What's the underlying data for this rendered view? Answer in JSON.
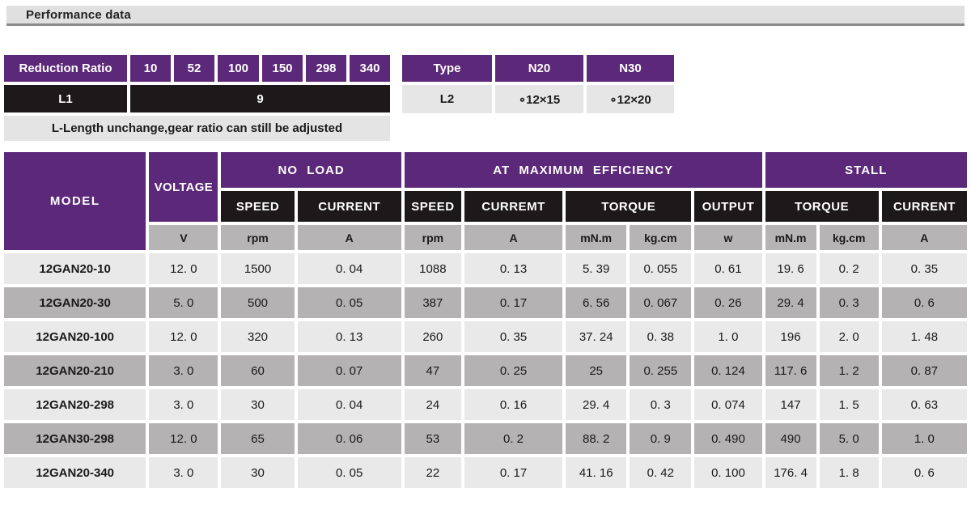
{
  "colors": {
    "purple": "#5c2879",
    "black": "#1d191a",
    "light_row": "#eae9e9",
    "dark_row": "#b5b2b3",
    "unit_gray": "#b7b4b5",
    "title_bar_bg": "#e1e0e0",
    "title_bar_border": "#8b8b8b"
  },
  "page_header": {
    "title": "Performance data"
  },
  "reduction_table": {
    "label": "Reduction Ratio",
    "ratios": [
      "10",
      "52",
      "100",
      "150",
      "298",
      "340"
    ],
    "l1_label": "L1",
    "l1_value": "9",
    "note": "L-Length unchange,gear ratio can still be adjusted"
  },
  "type_table": {
    "type_label": "Type",
    "types": [
      "N20",
      "N30"
    ],
    "l2_label": "L2",
    "l2_values": [
      "∘12×15",
      "∘12×20"
    ]
  },
  "main_table": {
    "group_headers": {
      "model": "MODEL",
      "voltage": "VOLTAGE",
      "no_load": "NO LOAD",
      "max_efficiency": "AT MAXIMUM EFFICIENCY",
      "stall": "STALL"
    },
    "sub_headers": {
      "nl_speed": "SPEED",
      "nl_current": "CURRENT",
      "me_speed": "SPEED",
      "me_current": "CURREMT",
      "me_torque": "TORQUE",
      "me_output": "OUTPUT",
      "st_torque": "TORQUE",
      "st_current": "CURRENT"
    },
    "units": [
      "V",
      "rpm",
      "A",
      "rpm",
      "A",
      "mN.m",
      "kg.cm",
      "w",
      "mN.m",
      "kg.cm",
      "A"
    ],
    "rows": [
      {
        "model": "12GAN20-10",
        "values": [
          "12. 0",
          "1500",
          "0. 04",
          "1088",
          "0. 13",
          "5. 39",
          "0. 055",
          "0. 61",
          "19. 6",
          "0. 2",
          "0. 35"
        ]
      },
      {
        "model": "12GAN20-30",
        "values": [
          "5. 0",
          "500",
          "0. 05",
          "387",
          "0. 17",
          "6. 56",
          "0. 067",
          "0. 26",
          "29. 4",
          "0. 3",
          "0. 6"
        ]
      },
      {
        "model": "12GAN20-100",
        "values": [
          "12. 0",
          "320",
          "0. 13",
          "260",
          "0. 35",
          "37. 24",
          "0. 38",
          "1. 0",
          "196",
          "2. 0",
          "1. 48"
        ]
      },
      {
        "model": "12GAN20-210",
        "values": [
          "3. 0",
          "60",
          "0. 07",
          "47",
          "0. 25",
          "25",
          "0. 255",
          "0. 124",
          "117. 6",
          "1. 2",
          "0. 87"
        ]
      },
      {
        "model": "12GAN20-298",
        "values": [
          "3. 0",
          "30",
          "0. 04",
          "24",
          "0. 16",
          "29. 4",
          "0. 3",
          "0. 074",
          "147",
          "1. 5",
          "0. 63"
        ]
      },
      {
        "model": "12GAN30-298",
        "values": [
          "12. 0",
          "65",
          "0. 06",
          "53",
          "0. 2",
          "88. 2",
          "0. 9",
          "0. 490",
          "490",
          "5. 0",
          "1. 0"
        ]
      },
      {
        "model": "12GAN20-340",
        "values": [
          "3. 0",
          "30",
          "0. 05",
          "22",
          "0. 17",
          "41. 16",
          "0. 42",
          "0. 100",
          "176. 4",
          "1. 8",
          "0. 6"
        ]
      }
    ]
  }
}
